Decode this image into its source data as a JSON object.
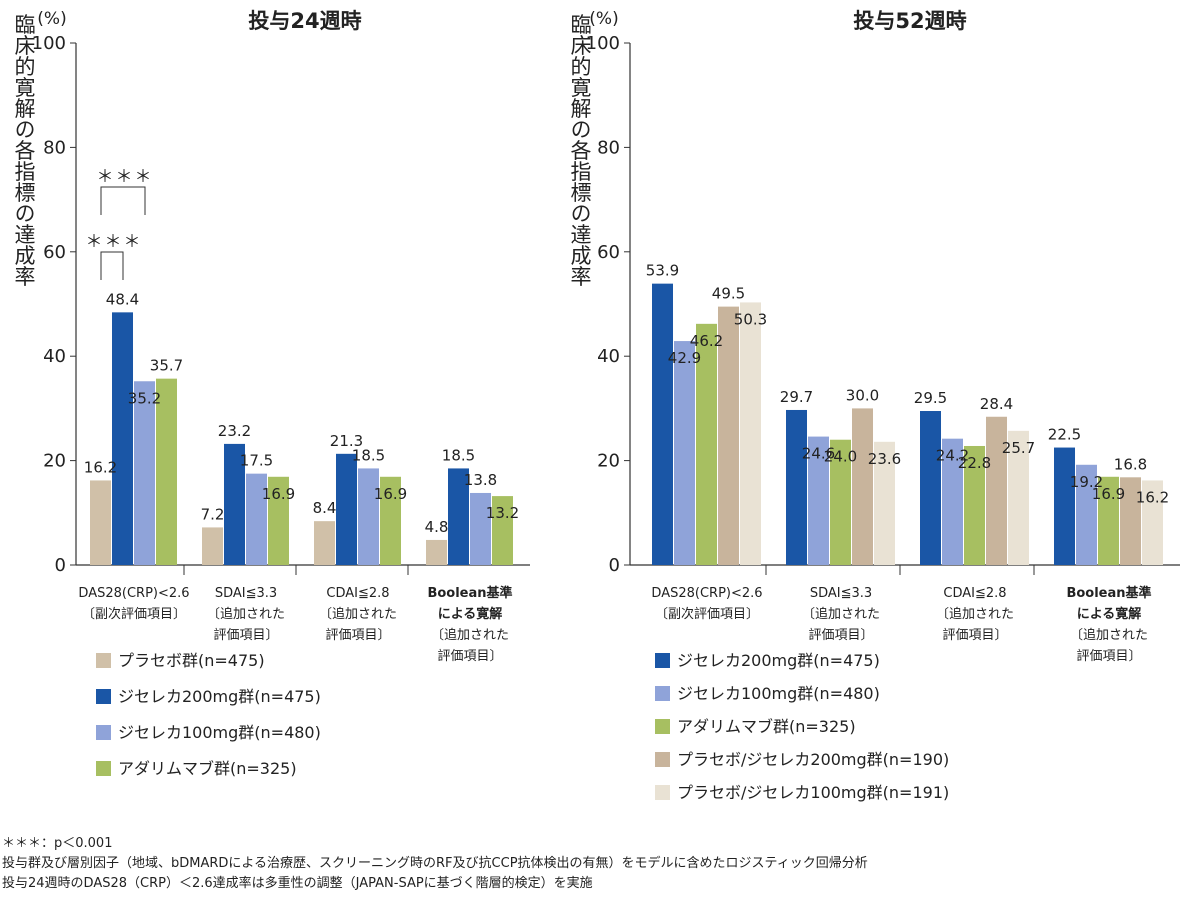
{
  "colors": {
    "placebo": "#d0c0a8",
    "jyseleca200": "#1a56a6",
    "jyseleca100": "#8fa3d9",
    "adalimumab": "#a7bf61",
    "placebo_jyseleca200": "#c8b49c",
    "placebo_jyseleca100": "#e9e2d4"
  },
  "chart_data": [
    {
      "type": "bar",
      "title": "投与24週時",
      "unit": "(%)",
      "ylabel": "臨床的寛解の各指標の達成率",
      "ylim": [
        0,
        100
      ],
      "yticks": [
        0,
        20,
        40,
        60,
        80,
        100
      ],
      "categories": [
        [
          "DAS28(CRP)<2.6",
          "〔副次評価項目〕"
        ],
        [
          "SDAI≦3.3",
          "〔追加された",
          "評価項目〕"
        ],
        [
          "CDAI≦2.8",
          "〔追加された",
          "評価項目〕"
        ],
        [
          "Boolean基準",
          "による寛解",
          "〔追加された",
          "評価項目〕"
        ]
      ],
      "series": [
        {
          "name": "プラセボ群(n=475)",
          "color_key": "placebo",
          "values": [
            16.2,
            7.2,
            8.4,
            4.8
          ]
        },
        {
          "name": "ジセレカ200mg群(n=475)",
          "color_key": "jyseleca200",
          "values": [
            48.4,
            23.2,
            21.3,
            18.5
          ]
        },
        {
          "name": "ジセレカ100mg群(n=480)",
          "color_key": "jyseleca100",
          "values": [
            35.2,
            17.5,
            18.5,
            13.8
          ]
        },
        {
          "name": "アダリムマブ群(n=325)",
          "color_key": "adalimumab",
          "values": [
            35.7,
            16.9,
            16.9,
            13.2
          ]
        }
      ],
      "significance": [
        {
          "label": "＊＊＊",
          "category": 0,
          "from_series": 0,
          "to_series": 1
        },
        {
          "label": "＊＊＊",
          "category": 0,
          "from_series": 0,
          "to_series": 2
        }
      ]
    },
    {
      "type": "bar",
      "title": "投与52週時",
      "unit": "(%)",
      "ylabel": "臨床的寛解の各指標の達成率",
      "ylim": [
        0,
        100
      ],
      "yticks": [
        0,
        20,
        40,
        60,
        80,
        100
      ],
      "categories": [
        [
          "DAS28(CRP)<2.6",
          "〔副次評価項目〕"
        ],
        [
          "SDAI≦3.3",
          "〔追加された",
          "評価項目〕"
        ],
        [
          "CDAI≦2.8",
          "〔追加された",
          "評価項目〕"
        ],
        [
          "Boolean基準",
          "による寛解",
          "〔追加された",
          "評価項目〕"
        ]
      ],
      "series": [
        {
          "name": "ジセレカ200mg群(n=475)",
          "color_key": "jyseleca200",
          "values": [
            53.9,
            29.7,
            29.5,
            22.5
          ]
        },
        {
          "name": "ジセレカ100mg群(n=480)",
          "color_key": "jyseleca100",
          "values": [
            42.9,
            24.6,
            24.2,
            19.2
          ]
        },
        {
          "name": "アダリムマブ群(n=325)",
          "color_key": "adalimumab",
          "values": [
            46.2,
            24.0,
            22.8,
            16.9
          ]
        },
        {
          "name": "プラセボ/ジセレカ200mg群(n=190)",
          "color_key": "placebo_jyseleca200",
          "values": [
            49.5,
            30.0,
            28.4,
            16.8
          ]
        },
        {
          "name": "プラセボ/ジセレカ100mg群(n=191)",
          "color_key": "placebo_jyseleca100",
          "values": [
            50.3,
            23.6,
            25.7,
            16.2
          ]
        }
      ]
    }
  ],
  "footnotes": [
    "＊＊＊：p＜0.001",
    "投与群及び層別因子（地域、bDMARDによる治療歴、スクリーニング時のRF及び抗CCP抗体検出の有無）をモデルに含めたロジスティック回帰分析",
    "投与24週時のDAS28（CRP）＜2.6達成率は多重性の調整（JAPAN-SAPに基づく階層的検定）を実施"
  ]
}
